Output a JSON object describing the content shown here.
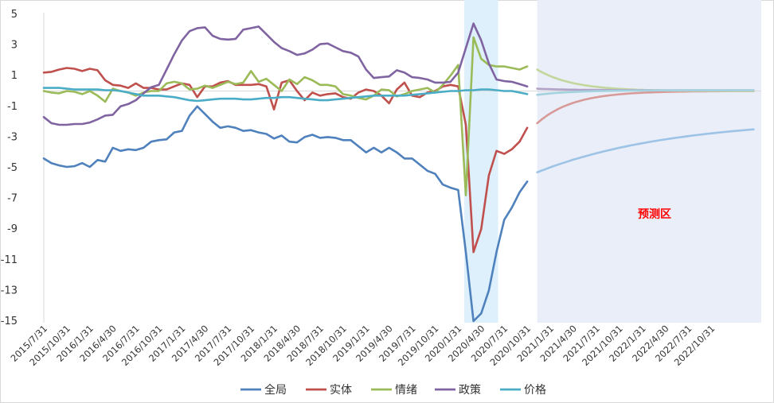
{
  "chart_data": {
    "type": "line",
    "title": "",
    "xlabel": "",
    "ylabel": "",
    "ylim": [
      -15,
      5
    ],
    "yticks": [
      5,
      3,
      1,
      -1,
      -3,
      -5,
      -7,
      -9,
      -11,
      -13,
      -15
    ],
    "xticks": [
      "2015/7/31",
      "2015/10/31",
      "2016/1/31",
      "2016/4/30",
      "2016/7/31",
      "2016/10/31",
      "2017/1/31",
      "2017/4/30",
      "2017/7/31",
      "2017/10/31",
      "2018/1/31",
      "2018/4/30",
      "2018/7/31",
      "2018/10/31",
      "2019/1/31",
      "2019/4/30",
      "2019/7/31",
      "2019/10/31",
      "2020/1/31",
      "2020/4/30",
      "2020/7/31",
      "2020/10/31",
      "2021/1/31",
      "2021/4/30",
      "2021/7/31",
      "2021/10/31",
      "2022/1/31",
      "2022/4/30",
      "2022/7/31",
      "2022/10/31"
    ],
    "highlight_band": {
      "from_index": 55,
      "to_index": 59,
      "color": "#ddf0fb"
    },
    "forecast_region": {
      "label": "预测区",
      "from_index": 64.3,
      "color": "#e9eef8"
    },
    "legend_position": "bottom",
    "series": [
      {
        "name": "全局",
        "color": "#4f81bd",
        "values": [
          -4.4,
          -4.7,
          -4.85,
          -4.95,
          -4.9,
          -4.7,
          -4.95,
          -4.5,
          -4.6,
          -3.7,
          -3.9,
          -3.8,
          -3.85,
          -3.7,
          -3.3,
          -3.2,
          -3.15,
          -2.7,
          -2.6,
          -1.6,
          -1.0,
          -1.5,
          -2.0,
          -2.4,
          -2.3,
          -2.4,
          -2.6,
          -2.55,
          -2.7,
          -2.8,
          -3.1,
          -2.9,
          -3.3,
          -3.35,
          -3.0,
          -2.85,
          -3.05,
          -3.0,
          -3.05,
          -3.2,
          -3.2,
          -3.6,
          -4.0,
          -3.7,
          -4.0,
          -3.7,
          -4.0,
          -4.4,
          -4.4,
          -4.8,
          -5.2,
          -5.4,
          -6.1,
          -6.3,
          -6.45,
          -10.5,
          -15.0,
          -14.5,
          -13.0,
          -10.5,
          -8.4,
          -7.6,
          -6.6,
          -5.9
        ]
      },
      {
        "name": "实体",
        "color": "#c0504d",
        "values": [
          1.2,
          1.25,
          1.4,
          1.5,
          1.45,
          1.3,
          1.45,
          1.35,
          0.7,
          0.4,
          0.35,
          0.2,
          0.5,
          0.2,
          0.2,
          0.1,
          0.1,
          0.3,
          0.5,
          0.4,
          -0.4,
          0.3,
          0.3,
          0.55,
          0.65,
          0.4,
          0.4,
          0.4,
          0.45,
          0.3,
          -1.2,
          0.55,
          0.7,
          0.0,
          -0.6,
          -0.1,
          -0.3,
          -0.2,
          -0.15,
          -0.4,
          -0.5,
          -0.1,
          0.1,
          0.0,
          -0.3,
          -0.8,
          0.1,
          0.55,
          -0.3,
          -0.4,
          -0.1,
          0.0,
          0.3,
          0.4,
          0.3,
          -2.2,
          -10.5,
          -9.0,
          -5.5,
          -3.9,
          -4.1,
          -3.8,
          -3.3,
          -2.4
        ]
      },
      {
        "name": "情绪",
        "color": "#9bbb59",
        "values": [
          0.0,
          -0.1,
          -0.15,
          0.0,
          -0.05,
          -0.2,
          0.0,
          -0.3,
          -0.7,
          0.15,
          0.0,
          -0.1,
          -0.3,
          -0.1,
          0.0,
          0.0,
          0.5,
          0.6,
          0.5,
          0.1,
          0.15,
          0.35,
          0.2,
          0.4,
          0.6,
          0.45,
          0.55,
          1.3,
          0.6,
          0.8,
          0.4,
          0.0,
          0.75,
          0.45,
          0.9,
          0.7,
          0.4,
          0.4,
          0.3,
          -0.2,
          -0.3,
          -0.45,
          -0.55,
          -0.3,
          0.1,
          0.05,
          -0.35,
          -0.2,
          0.0,
          0.1,
          0.2,
          -0.1,
          0.4,
          1.0,
          1.7,
          -6.8,
          3.5,
          2.1,
          1.7,
          1.6,
          1.6,
          1.5,
          1.4,
          1.6
        ]
      },
      {
        "name": "政策",
        "color": "#8064a2",
        "values": [
          -1.7,
          -2.1,
          -2.2,
          -2.2,
          -2.15,
          -2.15,
          -2.05,
          -1.85,
          -1.6,
          -1.55,
          -1.0,
          -0.85,
          -0.6,
          -0.15,
          0.25,
          0.4,
          1.4,
          2.4,
          3.3,
          3.9,
          4.1,
          4.15,
          3.6,
          3.4,
          3.35,
          3.4,
          4.0,
          4.1,
          4.2,
          3.7,
          3.2,
          2.8,
          2.6,
          2.35,
          2.45,
          2.7,
          3.05,
          3.1,
          2.85,
          2.6,
          2.5,
          2.25,
          1.4,
          0.85,
          0.9,
          0.95,
          1.35,
          1.2,
          0.9,
          0.85,
          0.75,
          0.55,
          0.55,
          0.6,
          1.2,
          2.8,
          4.4,
          3.3,
          1.8,
          0.75,
          0.65,
          0.6,
          0.45,
          0.3
        ]
      },
      {
        "name": "价格",
        "color": "#4bacc6",
        "values": [
          0.2,
          0.2,
          0.2,
          0.15,
          0.1,
          0.1,
          0.1,
          0.1,
          0.05,
          0.05,
          0.0,
          -0.1,
          -0.2,
          -0.3,
          -0.3,
          -0.3,
          -0.35,
          -0.4,
          -0.5,
          -0.6,
          -0.65,
          -0.6,
          -0.55,
          -0.5,
          -0.5,
          -0.5,
          -0.55,
          -0.55,
          -0.5,
          -0.45,
          -0.45,
          -0.4,
          -0.4,
          -0.45,
          -0.5,
          -0.55,
          -0.6,
          -0.6,
          -0.55,
          -0.5,
          -0.45,
          -0.4,
          -0.35,
          -0.3,
          -0.3,
          -0.3,
          -0.3,
          -0.3,
          -0.25,
          -0.2,
          -0.15,
          -0.1,
          -0.05,
          0.0,
          0.0,
          0.05,
          0.05,
          0.1,
          0.1,
          0.05,
          0.0,
          0.0,
          -0.1,
          -0.2
        ]
      }
    ],
    "forecast_series": [
      {
        "name": "全局",
        "color": "#9dc3e6",
        "start_index": 64.3,
        "end_index": 92.5,
        "start_value": -5.3,
        "end_value": -2.5,
        "shape": "decay"
      },
      {
        "name": "实体",
        "color": "#d89a98",
        "start_index": 64.3,
        "end_index": 92.5,
        "start_value": -2.1,
        "end_value": 0.0,
        "shape": "decay"
      },
      {
        "name": "情绪",
        "color": "#c3d69b",
        "start_index": 64.3,
        "end_index": 92.5,
        "start_value": 1.4,
        "end_value": 0.0,
        "shape": "decay"
      },
      {
        "name": "政策",
        "color": "#b3a2c7",
        "start_index": 64.3,
        "end_index": 92.5,
        "start_value": 0.15,
        "end_value": 0.05,
        "shape": "decay"
      },
      {
        "name": "价格",
        "color": "#a5d2df",
        "start_index": 64.3,
        "end_index": 92.5,
        "start_value": -0.25,
        "end_value": 0.05,
        "shape": "decay"
      }
    ]
  }
}
